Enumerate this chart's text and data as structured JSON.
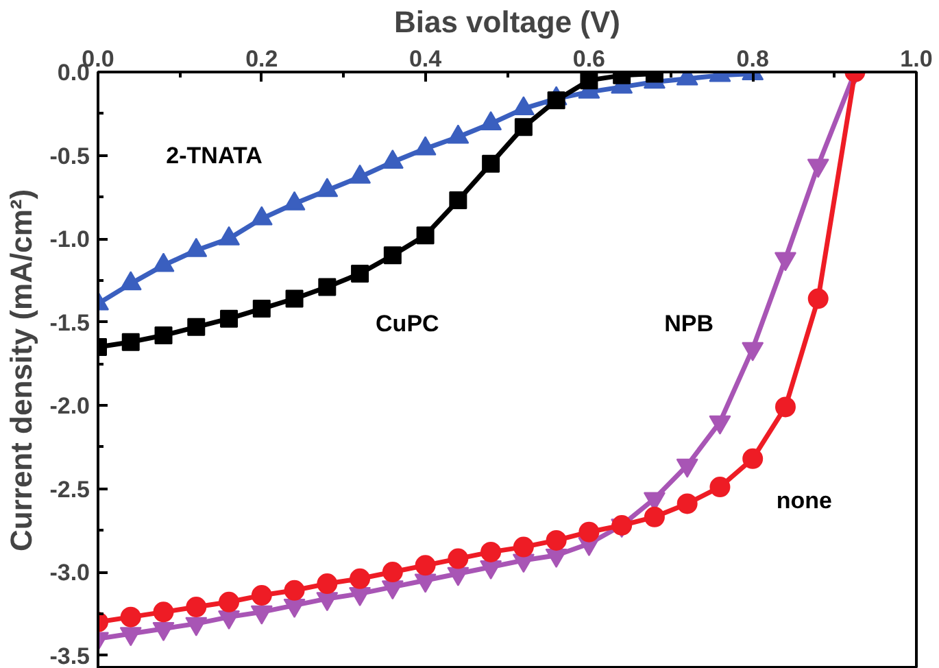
{
  "chart_data": {
    "type": "line",
    "xlabel": "Bias voltage (V)",
    "ylabel": "Current density (mA/cm²)",
    "xlim": [
      0,
      1.0
    ],
    "xticks": [
      {
        "value": 0,
        "label": "0.0"
      },
      0.2,
      0.4,
      0.6,
      0.8,
      {
        "value": 1,
        "label": "1.0"
      }
    ],
    "ylim": [
      -3.58,
      0
    ],
    "yticks": [
      {
        "value": 0,
        "label": "0.0"
      },
      -0.5,
      {
        "value": -1,
        "label": "-1.0"
      },
      -1.5,
      {
        "value": -2,
        "label": "-2.0"
      },
      -2.5,
      {
        "value": -3,
        "label": "-3.0"
      },
      -3.5
    ],
    "grid": false,
    "legend": false,
    "line_style": "solid",
    "series": [
      {
        "name": "2-TNATA",
        "color": "#3a5fbf",
        "marker": "triangle",
        "x": [
          0,
          0.04,
          0.08,
          0.12,
          0.16,
          0.2,
          0.24,
          0.28,
          0.32,
          0.36,
          0.4,
          0.44,
          0.48,
          0.52,
          0.56,
          0.6,
          0.64,
          0.68,
          0.72,
          0.76,
          0.8
        ],
        "values": [
          -1.39,
          -1.27,
          -1.16,
          -1.07,
          -1.0,
          -0.88,
          -0.79,
          -0.71,
          -0.63,
          -0.54,
          -0.46,
          -0.39,
          -0.31,
          -0.22,
          -0.16,
          -0.12,
          -0.09,
          -0.06,
          -0.04,
          -0.02,
          -0.01
        ]
      },
      {
        "name": "CuPC",
        "color": "#000000",
        "marker": "square",
        "x": [
          0,
          0.04,
          0.08,
          0.12,
          0.16,
          0.2,
          0.24,
          0.28,
          0.32,
          0.36,
          0.4,
          0.44,
          0.48,
          0.52,
          0.56,
          0.6,
          0.64,
          0.68
        ],
        "values": [
          -1.65,
          -1.62,
          -1.58,
          -1.53,
          -1.48,
          -1.42,
          -1.36,
          -1.29,
          -1.21,
          -1.1,
          -0.98,
          -0.77,
          -0.55,
          -0.33,
          -0.17,
          -0.05,
          -0.02,
          -0.01
        ]
      },
      {
        "name": "NPB",
        "color": "#a855b5",
        "marker": "triangle_down",
        "x": [
          0,
          0.04,
          0.08,
          0.12,
          0.16,
          0.2,
          0.24,
          0.28,
          0.32,
          0.36,
          0.4,
          0.44,
          0.48,
          0.52,
          0.56,
          0.6,
          0.64,
          0.68,
          0.72,
          0.76,
          0.8,
          0.84,
          0.88,
          0.925
        ],
        "values": [
          -3.4,
          -3.37,
          -3.34,
          -3.31,
          -3.27,
          -3.24,
          -3.2,
          -3.16,
          -3.13,
          -3.09,
          -3.05,
          -3.01,
          -2.97,
          -2.93,
          -2.9,
          -2.83,
          -2.72,
          -2.56,
          -2.36,
          -2.1,
          -1.66,
          -1.12,
          -0.56,
          0.0
        ]
      },
      {
        "name": "none",
        "color": "#ee1c25",
        "marker": "circle",
        "x": [
          0,
          0.04,
          0.08,
          0.12,
          0.16,
          0.2,
          0.24,
          0.28,
          0.32,
          0.36,
          0.4,
          0.44,
          0.48,
          0.52,
          0.56,
          0.6,
          0.64,
          0.68,
          0.72,
          0.76,
          0.8,
          0.84,
          0.88,
          0.925
        ],
        "values": [
          -3.3,
          -3.27,
          -3.24,
          -3.21,
          -3.18,
          -3.14,
          -3.11,
          -3.07,
          -3.04,
          -3.0,
          -2.96,
          -2.92,
          -2.88,
          -2.85,
          -2.81,
          -2.76,
          -2.72,
          -2.67,
          -2.59,
          -2.49,
          -2.32,
          -2.01,
          -1.36,
          0.0
        ]
      }
    ]
  }
}
